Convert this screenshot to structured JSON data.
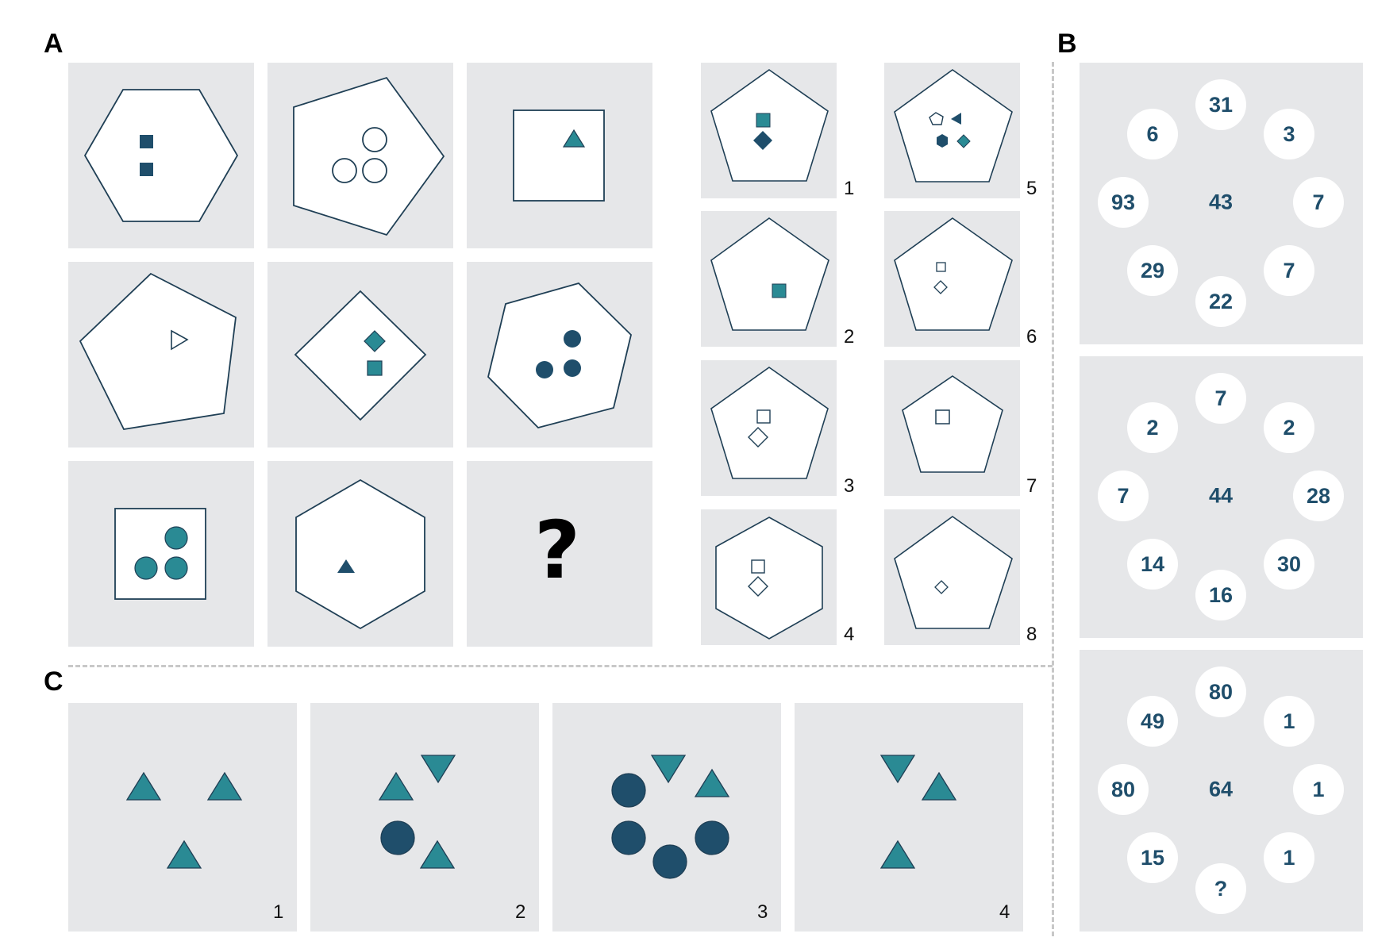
{
  "labels": {
    "a": "A",
    "b": "B",
    "c": "C"
  },
  "colors": {
    "dark": "#1f4e6b",
    "teal": "#2a8a94",
    "panel": "#e6e7e9",
    "stroke": "#1f3f55"
  },
  "matrix": {
    "missing_symbol": "?"
  },
  "options": [
    "1",
    "2",
    "3",
    "4",
    "5",
    "6",
    "7",
    "8"
  ],
  "number_wheels": [
    {
      "center": "43",
      "items": [
        "31",
        "3",
        "7",
        "7",
        "22",
        "29",
        "93",
        "6"
      ]
    },
    {
      "center": "44",
      "items": [
        "7",
        "2",
        "28",
        "30",
        "16",
        "14",
        "7",
        "2"
      ]
    },
    {
      "center": "64",
      "items": [
        "80",
        "1",
        "1",
        "1",
        "?",
        "15",
        "80",
        "49"
      ]
    }
  ],
  "sequence": [
    "1",
    "2",
    "3",
    "4"
  ]
}
